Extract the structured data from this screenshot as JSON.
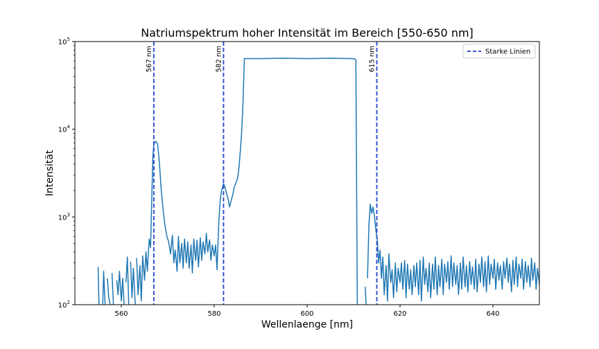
{
  "chart_data": {
    "type": "line",
    "title": "Natriumspektrum hoher Intensität im Bereich [550-650 nm]",
    "xlabel": "Wellenlaenge [nm]",
    "ylabel": "Intensität",
    "xlim": [
      550,
      650
    ],
    "ylim": [
      100,
      100000
    ],
    "yscale": "log",
    "grid": false,
    "legend_position": "top-right",
    "line_color": "#1f77b4",
    "marker_color": "#3355cc",
    "x_ticks": [
      {
        "value": 560,
        "label": "560"
      },
      {
        "value": 580,
        "label": "580"
      },
      {
        "value": 600,
        "label": "600"
      },
      {
        "value": 620,
        "label": "620"
      },
      {
        "value": 640,
        "label": "640"
      }
    ],
    "y_ticks": [
      {
        "value": 100,
        "base": "10",
        "exp": "2"
      },
      {
        "value": 1000,
        "base": "10",
        "exp": "3"
      },
      {
        "value": 10000,
        "base": "10",
        "exp": "4"
      },
      {
        "value": 100000,
        "base": "10",
        "exp": "5"
      }
    ],
    "vlines": [
      {
        "x": 567,
        "label": "567 nm"
      },
      {
        "x": 582,
        "label": "582 nm"
      },
      {
        "x": 615,
        "label": "615 nm"
      }
    ],
    "legend": [
      {
        "label": "Starke Linien",
        "style": "dashed"
      }
    ],
    "series": [
      {
        "segments": [
          [
            [
              555,
              270
            ],
            [
              555.2,
              100
            ]
          ],
          [
            [
              556,
              100
            ],
            [
              556.2,
              240
            ],
            [
              556.5,
              100
            ]
          ],
          [
            [
              557,
              200
            ],
            [
              557.3,
              120
            ],
            [
              557.6,
              100
            ]
          ],
          [
            [
              558,
              230
            ],
            [
              558.3,
              100
            ]
          ],
          [
            [
              559,
              190
            ],
            [
              559.3,
              130
            ],
            [
              559.6,
              240
            ],
            [
              560,
              110
            ],
            [
              560.3,
              200
            ],
            [
              560.6,
              100
            ]
          ],
          [
            [
              561,
              180
            ],
            [
              561.3,
              350
            ],
            [
              561.6,
              100
            ]
          ],
          [
            [
              562,
              310
            ],
            [
              562.3,
              120
            ],
            [
              562.6,
              260
            ],
            [
              563,
              100
            ]
          ],
          [
            [
              563.3,
              340
            ],
            [
              563.6,
              130
            ],
            [
              564,
              280
            ],
            [
              564.3,
              110
            ],
            [
              564.6,
              360
            ],
            [
              565,
              190
            ],
            [
              565.3,
              400
            ],
            [
              565.6,
              240
            ],
            [
              566,
              560
            ],
            [
              566.3,
              450
            ],
            [
              566.6,
              2000
            ],
            [
              566.8,
              5000
            ],
            [
              567,
              6800
            ],
            [
              567.4,
              7300
            ],
            [
              567.8,
              6800
            ],
            [
              568.2,
              4200
            ],
            [
              568.6,
              2000
            ],
            [
              569,
              1200
            ],
            [
              569.4,
              800
            ],
            [
              569.8,
              600
            ],
            [
              570.2,
              520
            ],
            [
              570.6,
              380
            ],
            [
              571,
              620
            ],
            [
              571.3,
              300
            ],
            [
              571.6,
              420
            ],
            [
              572,
              240
            ],
            [
              572.3,
              600
            ],
            [
              572.6,
              300
            ],
            [
              573,
              500
            ],
            [
              573.3,
              260
            ],
            [
              573.6,
              560
            ],
            [
              574,
              300
            ],
            [
              574.3,
              520
            ],
            [
              574.6,
              260
            ],
            [
              575,
              480
            ],
            [
              575.3,
              230
            ],
            [
              575.6,
              560
            ],
            [
              576,
              320
            ],
            [
              576.3,
              540
            ],
            [
              576.6,
              270
            ],
            [
              577,
              580
            ],
            [
              577.3,
              320
            ],
            [
              577.6,
              520
            ],
            [
              578,
              380
            ],
            [
              578.3,
              650
            ],
            [
              578.6,
              400
            ],
            [
              579,
              550
            ],
            [
              579.3,
              320
            ],
            [
              579.6,
              480
            ],
            [
              580,
              360
            ],
            [
              580.3,
              480
            ],
            [
              580.6,
              250
            ],
            [
              581,
              900
            ],
            [
              581.3,
              1600
            ],
            [
              581.6,
              2000
            ],
            [
              582,
              2400
            ],
            [
              582.3,
              2200
            ],
            [
              582.6,
              1900
            ],
            [
              583,
              1600
            ],
            [
              583.3,
              1300
            ],
            [
              583.6,
              1500
            ],
            [
              584,
              1800
            ],
            [
              584.3,
              2200
            ],
            [
              584.6,
              2400
            ],
            [
              585,
              2700
            ],
            [
              585.3,
              3500
            ],
            [
              585.6,
              5500
            ],
            [
              585.9,
              9000
            ],
            [
              586.2,
              20000
            ],
            [
              586.5,
              64000
            ],
            [
              590,
              64000
            ],
            [
              595,
              64500
            ],
            [
              600,
              64000
            ],
            [
              605,
              64500
            ],
            [
              610,
              64000
            ],
            [
              610.5,
              62000
            ],
            [
              610.8,
              100
            ]
          ],
          [
            [
              612.5,
              160
            ],
            [
              612.7,
              100
            ]
          ],
          [
            [
              613,
              200
            ],
            [
              613.3,
              800
            ],
            [
              613.6,
              1400
            ],
            [
              613.9,
              1100
            ],
            [
              614.2,
              1300
            ],
            [
              614.5,
              1000
            ],
            [
              614.8,
              700
            ],
            [
              615.1,
              560
            ],
            [
              615.4,
              300
            ],
            [
              615.7,
              420
            ],
            [
              616,
              200
            ],
            [
              616.3,
              350
            ],
            [
              616.6,
              130
            ],
            [
              617,
              280
            ],
            [
              617.3,
              110
            ],
            [
              617.6,
              380
            ],
            [
              618,
              180
            ],
            [
              618.3,
              250
            ],
            [
              618.6,
              120
            ],
            [
              619,
              300
            ],
            [
              619.3,
              140
            ],
            [
              619.6,
              260
            ],
            [
              620,
              180
            ],
            [
              620.3,
              300
            ],
            [
              620.6,
              150
            ],
            [
              621,
              320
            ],
            [
              621.3,
              120
            ],
            [
              621.6,
              290
            ],
            [
              622,
              150
            ],
            [
              622.3,
              250
            ],
            [
              622.6,
              130
            ],
            [
              623,
              280
            ],
            [
              623.3,
              160
            ],
            [
              623.6,
              300
            ],
            [
              624,
              130
            ],
            [
              624.3,
              320
            ],
            [
              624.6,
              110
            ],
            [
              625,
              350
            ],
            [
              625.3,
              170
            ],
            [
              625.6,
              260
            ],
            [
              626,
              140
            ],
            [
              626.3,
              300
            ],
            [
              626.6,
              120
            ],
            [
              627,
              290
            ],
            [
              627.3,
              150
            ],
            [
              627.6,
              350
            ],
            [
              628,
              130
            ],
            [
              628.3,
              280
            ],
            [
              628.6,
              160
            ],
            [
              629,
              330
            ],
            [
              629.3,
              130
            ],
            [
              629.6,
              290
            ],
            [
              630,
              180
            ],
            [
              630.3,
              310
            ],
            [
              630.6,
              150
            ],
            [
              631,
              360
            ],
            [
              631.3,
              160
            ],
            [
              631.6,
              300
            ],
            [
              632,
              170
            ],
            [
              632.3,
              280
            ],
            [
              632.6,
              130
            ],
            [
              633,
              300
            ],
            [
              633.3,
              150
            ],
            [
              633.6,
              350
            ],
            [
              634,
              160
            ],
            [
              634.3,
              280
            ],
            [
              634.6,
              140
            ],
            [
              635,
              310
            ],
            [
              635.3,
              170
            ],
            [
              635.6,
              270
            ],
            [
              636,
              150
            ],
            [
              636.3,
              330
            ],
            [
              636.6,
              140
            ],
            [
              637,
              290
            ],
            [
              637.3,
              180
            ],
            [
              637.6,
              350
            ],
            [
              638,
              160
            ],
            [
              638.3,
              310
            ],
            [
              638.6,
              140
            ],
            [
              639,
              360
            ],
            [
              639.3,
              170
            ],
            [
              639.6,
              290
            ],
            [
              640,
              200
            ],
            [
              640.3,
              330
            ],
            [
              640.6,
              150
            ],
            [
              641,
              300
            ],
            [
              641.3,
              190
            ],
            [
              641.6,
              280
            ],
            [
              642,
              150
            ],
            [
              642.3,
              310
            ],
            [
              642.6,
              200
            ],
            [
              643,
              340
            ],
            [
              643.3,
              180
            ],
            [
              643.6,
              290
            ],
            [
              644,
              140
            ],
            [
              644.3,
              320
            ],
            [
              644.6,
              170
            ],
            [
              645,
              350
            ],
            [
              645.3,
              160
            ],
            [
              645.6,
              290
            ],
            [
              646,
              200
            ],
            [
              646.3,
              330
            ],
            [
              646.6,
              150
            ],
            [
              647,
              310
            ],
            [
              647.3,
              180
            ],
            [
              647.6,
              280
            ],
            [
              648,
              160
            ],
            [
              648.3,
              340
            ],
            [
              648.6,
              190
            ],
            [
              649,
              300
            ],
            [
              649.3,
              150
            ],
            [
              649.6,
              260
            ],
            [
              650,
              170
            ]
          ]
        ]
      }
    ]
  }
}
